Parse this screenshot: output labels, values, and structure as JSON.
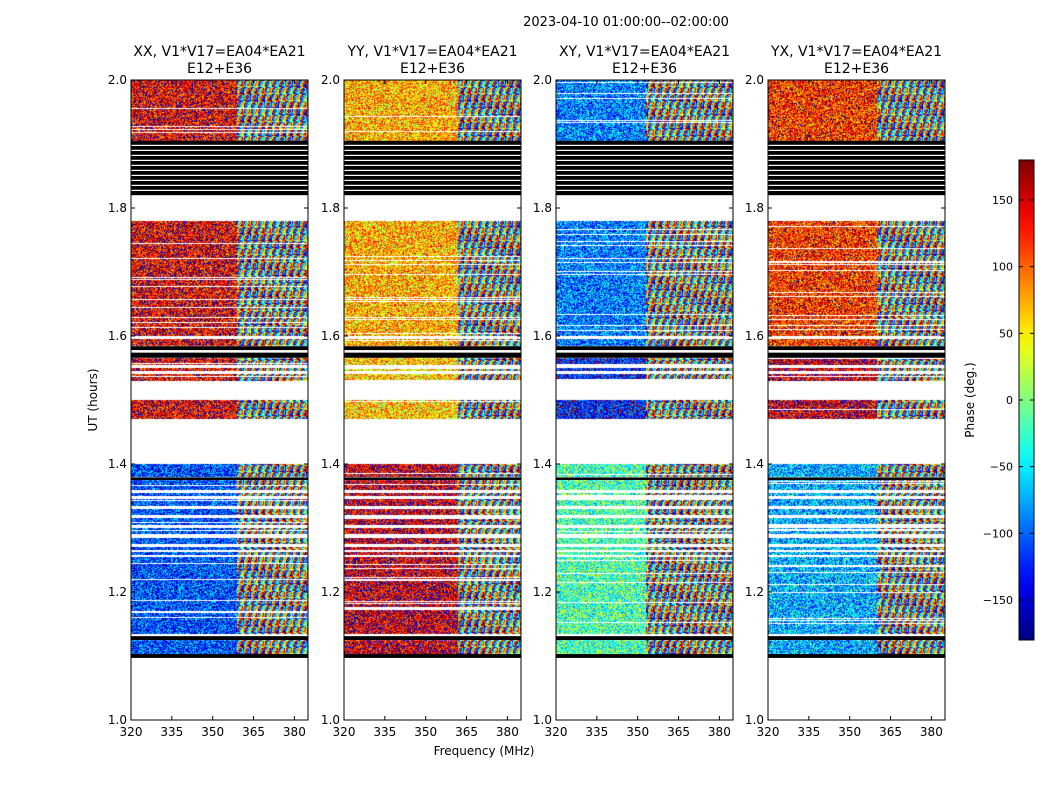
{
  "figure": {
    "suptitle": "2023-04-10  01:00:00--02:00:00",
    "xlabel": "Frequency (MHz)",
    "ylabel": "UT (hours)"
  },
  "chart_data": {
    "type": "heatmap",
    "title": "2023-04-10  01:00:00--02:00:00",
    "xlabel": "Frequency (MHz)",
    "ylabel": "UT (hours)",
    "xlim": [
      320,
      385
    ],
    "ylim": [
      1.0,
      2.0
    ],
    "xticks": [
      320,
      335,
      350,
      365,
      380
    ],
    "yticks": [
      1.0,
      1.2,
      1.4,
      1.6,
      1.8,
      2.0
    ],
    "panels": [
      {
        "title_line1": "XX, V1*V17=EA04*EA21",
        "title_line2": "E12+E36",
        "dominant_phase": {
          "top": 140,
          "band": 140,
          "lower": -110
        }
      },
      {
        "title_line1": "YY, V1*V17=EA04*EA21",
        "title_line2": "E12+E36",
        "dominant_phase": {
          "top": 70,
          "band": 60,
          "lower": 150
        }
      },
      {
        "title_line1": "XY, V1*V17=EA04*EA21",
        "title_line2": "E12+E36",
        "dominant_phase": {
          "top": -90,
          "band": -130,
          "lower": -20
        }
      },
      {
        "title_line1": "YX, V1*V17=EA04*EA21",
        "title_line2": "E12+E36",
        "dominant_phase": {
          "top": 120,
          "band": 150,
          "lower": -70
        }
      }
    ],
    "data_rows_ut": [
      [
        1.1,
        1.125
      ],
      [
        1.135,
        1.255
      ],
      [
        1.258,
        1.262
      ],
      [
        1.266,
        1.27
      ],
      [
        1.275,
        1.285
      ],
      [
        1.29,
        1.3
      ],
      [
        1.305,
        1.315
      ],
      [
        1.32,
        1.33
      ],
      [
        1.335,
        1.345
      ],
      [
        1.35,
        1.355
      ],
      [
        1.36,
        1.375
      ],
      [
        1.38,
        1.4
      ],
      [
        1.47,
        1.5
      ],
      [
        1.53,
        1.54
      ],
      [
        1.545,
        1.55
      ],
      [
        1.555,
        1.565
      ],
      [
        1.585,
        1.595
      ],
      [
        1.6,
        1.78
      ],
      [
        1.895,
        2.0
      ]
    ],
    "flagged_black_rows_ut": [
      [
        1.097,
        1.103
      ],
      [
        1.125,
        1.131
      ],
      [
        1.375,
        1.379
      ],
      [
        1.566,
        1.574
      ],
      [
        1.578,
        1.584
      ],
      [
        1.82,
        1.905
      ]
    ],
    "coherent_channel_cutoff_mhz": {
      "XX": 359,
      "YY": 362,
      "XY": 353,
      "YX": 360
    },
    "colorbar": {
      "label": "Phase (deg.)",
      "range": [
        -180,
        180
      ],
      "ticks": [
        150,
        100,
        50,
        0,
        -50,
        -100,
        -150
      ],
      "tick_labels": [
        "150",
        "100",
        "50",
        "0",
        "−50",
        "−100",
        "−150"
      ],
      "colormap": "jet"
    }
  }
}
